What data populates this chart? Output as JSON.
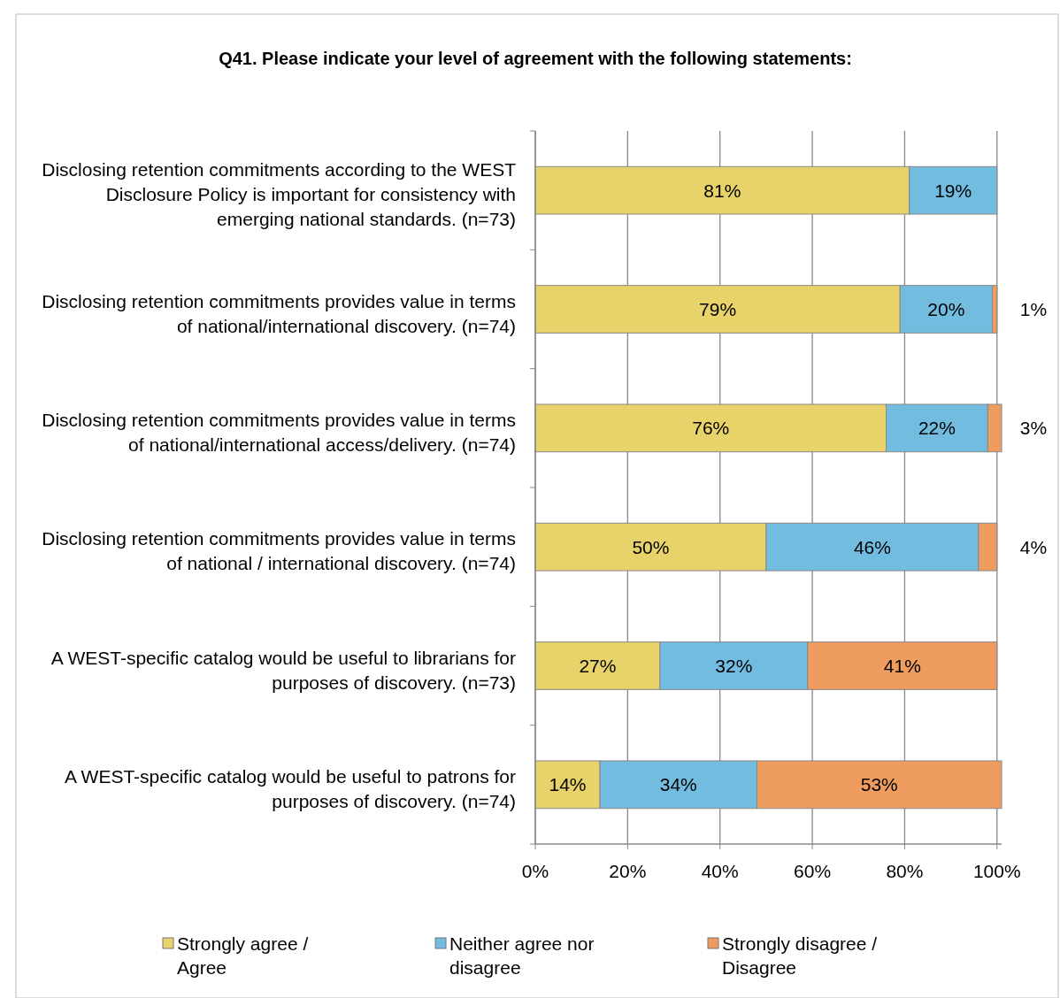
{
  "chart_data": {
    "type": "bar",
    "orientation": "horizontal",
    "stacked": true,
    "title": "Q41. Please indicate your level of agreement with the following statements:",
    "categories": [
      "Disclosing retention commitments according to the WEST Disclosure Policy is important for consistency with emerging national standards. (n=73)",
      "Disclosing retention commitments provides value in terms of national/international discovery. (n=74)",
      "Disclosing retention commitments provides value in terms of national/international access/delivery. (n=74)",
      "Disclosing retention commitments provides value in terms of national / international discovery. (n=74)",
      "A WEST-specific catalog would be useful to librarians for purposes of discovery. (n=73)",
      "A WEST-specific catalog would be useful to patrons for purposes of discovery. (n=74)"
    ],
    "series": [
      {
        "name": "Strongly agree / Agree",
        "color": "#e8d36a",
        "values": [
          81,
          79,
          76,
          50,
          27,
          14
        ],
        "value_labels": [
          "81%",
          "79%",
          "76%",
          "50%",
          "27%",
          "14%"
        ]
      },
      {
        "name": "Neither agree nor disagree",
        "color": "#72bce0",
        "values": [
          19,
          20,
          22,
          46,
          32,
          34
        ],
        "value_labels": [
          "19%",
          "20%",
          "22%",
          "46%",
          "32%",
          "34%"
        ]
      },
      {
        "name": "Strongly disagree / Disagree",
        "color": "#ee9c5f",
        "values": [
          0,
          1,
          3,
          4,
          41,
          53
        ],
        "value_labels": [
          null,
          "1%",
          "3%",
          "4%",
          "41%",
          "53%"
        ]
      }
    ],
    "xlim": [
      0,
      101
    ],
    "xticks": [
      {
        "value": 0,
        "label": "0%"
      },
      {
        "value": 20,
        "label": "20%"
      },
      {
        "value": 40,
        "label": "40%"
      },
      {
        "value": 60,
        "label": "60%"
      },
      {
        "value": 80,
        "label": "80%"
      },
      {
        "value": 100,
        "label": "100%"
      }
    ],
    "grid": "x",
    "legend": "bottom"
  }
}
